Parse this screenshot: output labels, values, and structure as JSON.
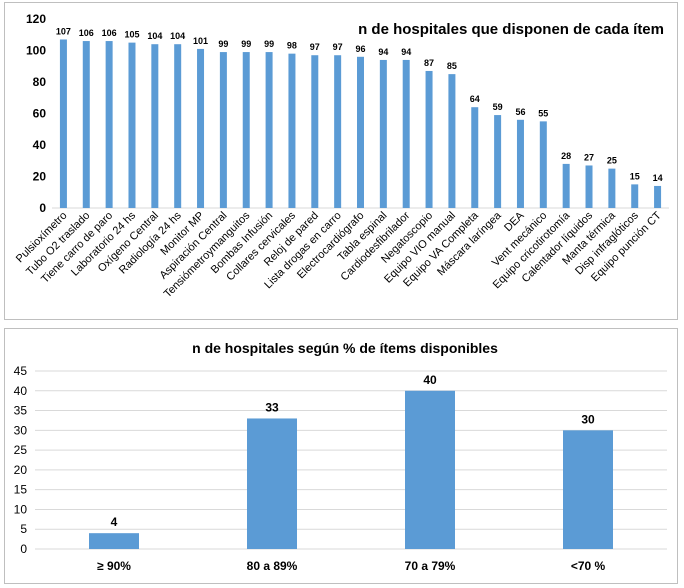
{
  "chart_data": [
    {
      "type": "bar",
      "title": "n de hospitales que disponen de cada ítem",
      "xlabel": "",
      "ylabel": "",
      "ylim": [
        0,
        120
      ],
      "yticks": [
        0,
        20,
        40,
        60,
        80,
        100,
        120
      ],
      "grid": false,
      "legend": "none",
      "bar_color": "#5b9bd5",
      "categories": [
        "Pulsioxímetro",
        "Tubo O2 traslado",
        "Tiene carro de paro",
        "Laboratorio 24 hs",
        "Oxígeno Central",
        "Radiología 24 hs",
        "Monitor MP",
        "Aspiración Central",
        "Tensiómetroymanguitos",
        "Bombas Infusión",
        "Collares cervicales",
        "Reloj de pared",
        "Lista drogas en carro",
        "Electrocardiógrafo",
        "Tabla espinal",
        "Cardiodesfibrilador",
        "Negatoscopio",
        "Equipo VIO manual",
        "Equipo VA Completa",
        "Máscara laríngea",
        "DEA",
        "Vent mecánico",
        "Equipo cricotirotomía",
        "Calentador líquidos",
        "Manta térmica",
        "Disp infraglóticos",
        "Equipo punción CT"
      ],
      "values": [
        107,
        106,
        106,
        105,
        104,
        104,
        101,
        99,
        99,
        99,
        98,
        97,
        97,
        96,
        94,
        94,
        87,
        85,
        64,
        59,
        56,
        55,
        28,
        27,
        25,
        15,
        14
      ]
    },
    {
      "type": "bar",
      "title": "n de hospitales según % de ítems disponibles",
      "xlabel": "",
      "ylabel": "",
      "ylim": [
        0,
        45
      ],
      "yticks": [
        0,
        5,
        10,
        15,
        20,
        25,
        30,
        35,
        40,
        45
      ],
      "grid": true,
      "legend": "none",
      "bar_color": "#5b9bd5",
      "categories": [
        "≥ 90%",
        "80 a 89%",
        "70 a 79%",
        "<70 %"
      ],
      "values": [
        4,
        33,
        40,
        30
      ]
    }
  ]
}
